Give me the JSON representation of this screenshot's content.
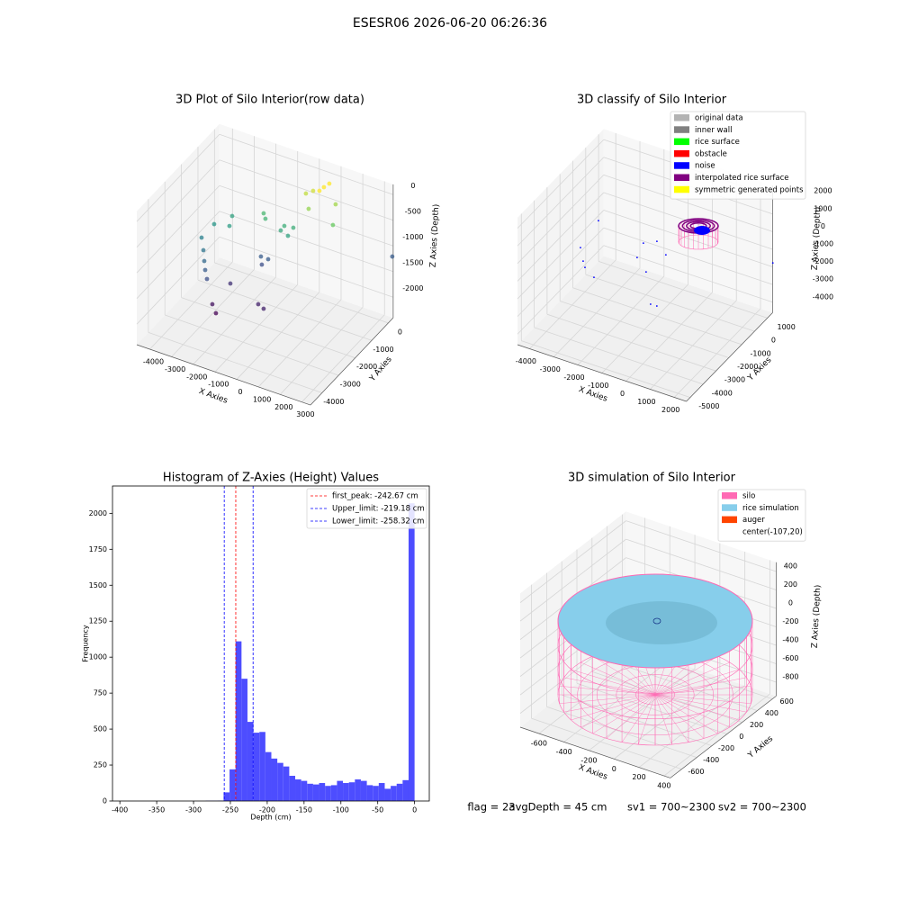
{
  "title": "ESESR06 2026-06-20 06:26:36",
  "chart_data": [
    {
      "type": "scatter3d",
      "title": "3D Plot of Silo Interior(row data)",
      "xlabel": "X Axies",
      "ylabel": "Y Axies",
      "zlabel": "Z Axies (Depth)",
      "xlim": [
        -4600,
        3400
      ],
      "ylim": [
        -4700,
        300
      ],
      "zlim": [
        -2400,
        200
      ],
      "xticks": [
        -4000,
        -3000,
        -2000,
        -1000,
        0,
        1000,
        2000,
        3000
      ],
      "yticks": [
        -4000,
        -3000,
        -2000,
        -1000,
        0
      ],
      "zticks": [
        -2000,
        -1500,
        -1000,
        -500,
        0
      ],
      "grid": true,
      "cmap": "viridis",
      "x": [
        755,
        718,
        824,
        2,
        248,
        1217,
        346,
        1466,
        -1655,
        -1498,
        -693,
        -322,
        -753,
        -411,
        -3520,
        -2994,
        -2845,
        -3850,
        -3542,
        -3325,
        -3167,
        -2978,
        -1678,
        -1339,
        -1549,
        2873,
        -2356,
        -2638,
        -2386,
        -879,
        -545
      ],
      "y": [
        -416,
        -639,
        -180,
        -516,
        -404,
        -315,
        -804,
        -806,
        -896,
        -994,
        -908,
        -851,
        -1048,
        -1060,
        -1440,
        -1042,
        -1401,
        -1767,
        -2062,
        -2294,
        -2446,
        -2586,
        -1030,
        -1038,
        -1145,
        936,
        -1988,
        -2708,
        -2821,
        -2242,
        -2355
      ],
      "z": [
        0,
        0,
        0,
        -200,
        -150,
        -300,
        -350,
        -500,
        -700,
        -750,
        -800,
        -800,
        -850,
        -900,
        -1000,
        -900,
        -950,
        -1200,
        -1300,
        -1400,
        -1500,
        -1600,
        -1500,
        -1500,
        -1600,
        -1500,
        -1800,
        -2000,
        -2100,
        -1900,
        -1900
      ]
    },
    {
      "type": "scatter3d",
      "title": "3D classify of Silo Interior",
      "xlabel": "X Axies",
      "ylabel": "Y Axies",
      "zlabel": "Z Axies (Depth)",
      "xlim": [
        -4500,
        2500
      ],
      "ylim": [
        -5300,
        1400
      ],
      "zlim": [
        -4600,
        2600
      ],
      "xticks": [
        -4000,
        -3000,
        -2000,
        -1000,
        0,
        1000,
        2000
      ],
      "yticks": [
        -5000,
        -4000,
        -3000,
        -2000,
        -1000,
        0,
        1000
      ],
      "zticks": [
        -4000,
        -3000,
        -2000,
        -1000,
        0,
        1000,
        2000
      ],
      "grid": true,
      "legend": "upper right",
      "series": [
        {
          "name": "original data",
          "color": "#b3b3b3"
        },
        {
          "name": "inner wall",
          "color": "#808080"
        },
        {
          "name": "rice surface",
          "color": "#00ff00"
        },
        {
          "name": "obstacle",
          "color": "#ff0000"
        },
        {
          "name": "noise",
          "color": "#0000ff",
          "x": [
            -4089,
            -3596,
            -3348,
            -2259,
            -1891,
            -1201,
            -2019,
            -1301,
            -177,
            74,
            -2766,
            -4346,
            2388
          ],
          "y": [
            -1178,
            -1894,
            -2218,
            282,
            643,
            47,
            -657,
            -1304,
            -3061,
            -3044,
            -2609,
            702,
            1633
          ],
          "z": [
            -2000,
            -2000,
            -2000,
            -2000,
            -2000,
            -2000,
            -2000,
            -2000,
            -2000,
            -2000,
            -2000,
            -2000,
            -2000
          ]
        },
        {
          "name": "interpolated rice surface",
          "color": "#800080"
        },
        {
          "name": "symmetric generated points",
          "color": "#ffff00"
        }
      ]
    },
    {
      "type": "histogram",
      "title": "Histogram of Z-Axies (Height) Values",
      "xlabel": "Depth (cm)",
      "ylabel": "Frequency",
      "color": "#4d4dff",
      "xlim": [
        -410,
        20
      ],
      "ylim": [
        0,
        2190
      ],
      "xticks": [
        -400,
        -350,
        -300,
        -250,
        -200,
        -150,
        -100,
        -50,
        0
      ],
      "yticks": [
        0,
        250,
        500,
        750,
        1000,
        1250,
        1500,
        1750,
        2000
      ],
      "bins": [
        -405,
        -396.9,
        -388.8,
        -380.7,
        -372.6,
        -364.5,
        -356.4,
        -348.3,
        -340.2,
        -332.1,
        -324,
        -315.9,
        -307.8,
        -299.7,
        -291.6,
        -283.5,
        -275.4,
        -267.3,
        -259.2,
        -251.1,
        -243,
        -234.9,
        -226.8,
        -218.7,
        -210.6,
        -202.5,
        -194.4,
        -186.3,
        -178.2,
        -170.1,
        -162,
        -153.9,
        -145.8,
        -137.7,
        -129.6,
        -121.5,
        -113.4,
        -105.3,
        -97.2,
        -89.1,
        -81,
        -72.9,
        -64.8,
        -56.7,
        -48.6,
        -40.5,
        -32.4,
        -24.3,
        -16.2,
        -8.1,
        0
      ],
      "values": [
        0,
        0,
        0,
        0,
        0,
        0,
        0,
        0,
        0,
        0,
        0,
        0,
        0,
        0,
        0,
        2,
        2,
        3,
        60,
        220,
        1110,
        850,
        550,
        475,
        480,
        340,
        295,
        265,
        240,
        175,
        150,
        140,
        120,
        115,
        125,
        105,
        110,
        140,
        125,
        130,
        150,
        140,
        110,
        105,
        125,
        85,
        105,
        120,
        145,
        2070
      ],
      "legend": "upper right",
      "vlines": [
        {
          "name": "first_peak: -242.67 cm",
          "value": -242.67,
          "color": "#ff0000"
        },
        {
          "name": "Upper_limit: -219.18 cm",
          "value": -219.18,
          "color": "#0000ff"
        },
        {
          "name": "Lower_limit: -258.32 cm",
          "value": -258.32,
          "color": "#0000ff"
        }
      ]
    },
    {
      "type": "surface3d",
      "title": "3D simulation of Silo Interior",
      "xlabel": "X Axies",
      "ylabel": "Y Axies",
      "zlabel": "Z Axies (Depth)",
      "xlim": [
        -750,
        450
      ],
      "ylim": [
        -750,
        650
      ],
      "zlim": [
        -950,
        500
      ],
      "xticks": [
        -600,
        -400,
        -200,
        0,
        200,
        400
      ],
      "yticks": [
        -600,
        -400,
        -200,
        0,
        200,
        400,
        600
      ],
      "zticks": [
        -800,
        -600,
        -400,
        -200,
        0,
        200,
        400
      ],
      "grid": true,
      "legend": "upper right",
      "series": [
        {
          "name": "silo",
          "color": "#ff69b4"
        },
        {
          "name": "rice simulation",
          "color": "#87ceeb"
        },
        {
          "name": "auger",
          "color": "#ff4500"
        },
        {
          "name": "center(-107,20)"
        }
      ]
    }
  ],
  "footer": [
    "flag = 23",
    "avgDepth = 45 cm",
    "sv1 = 700~2300",
    "sv2 = 700~2300"
  ]
}
